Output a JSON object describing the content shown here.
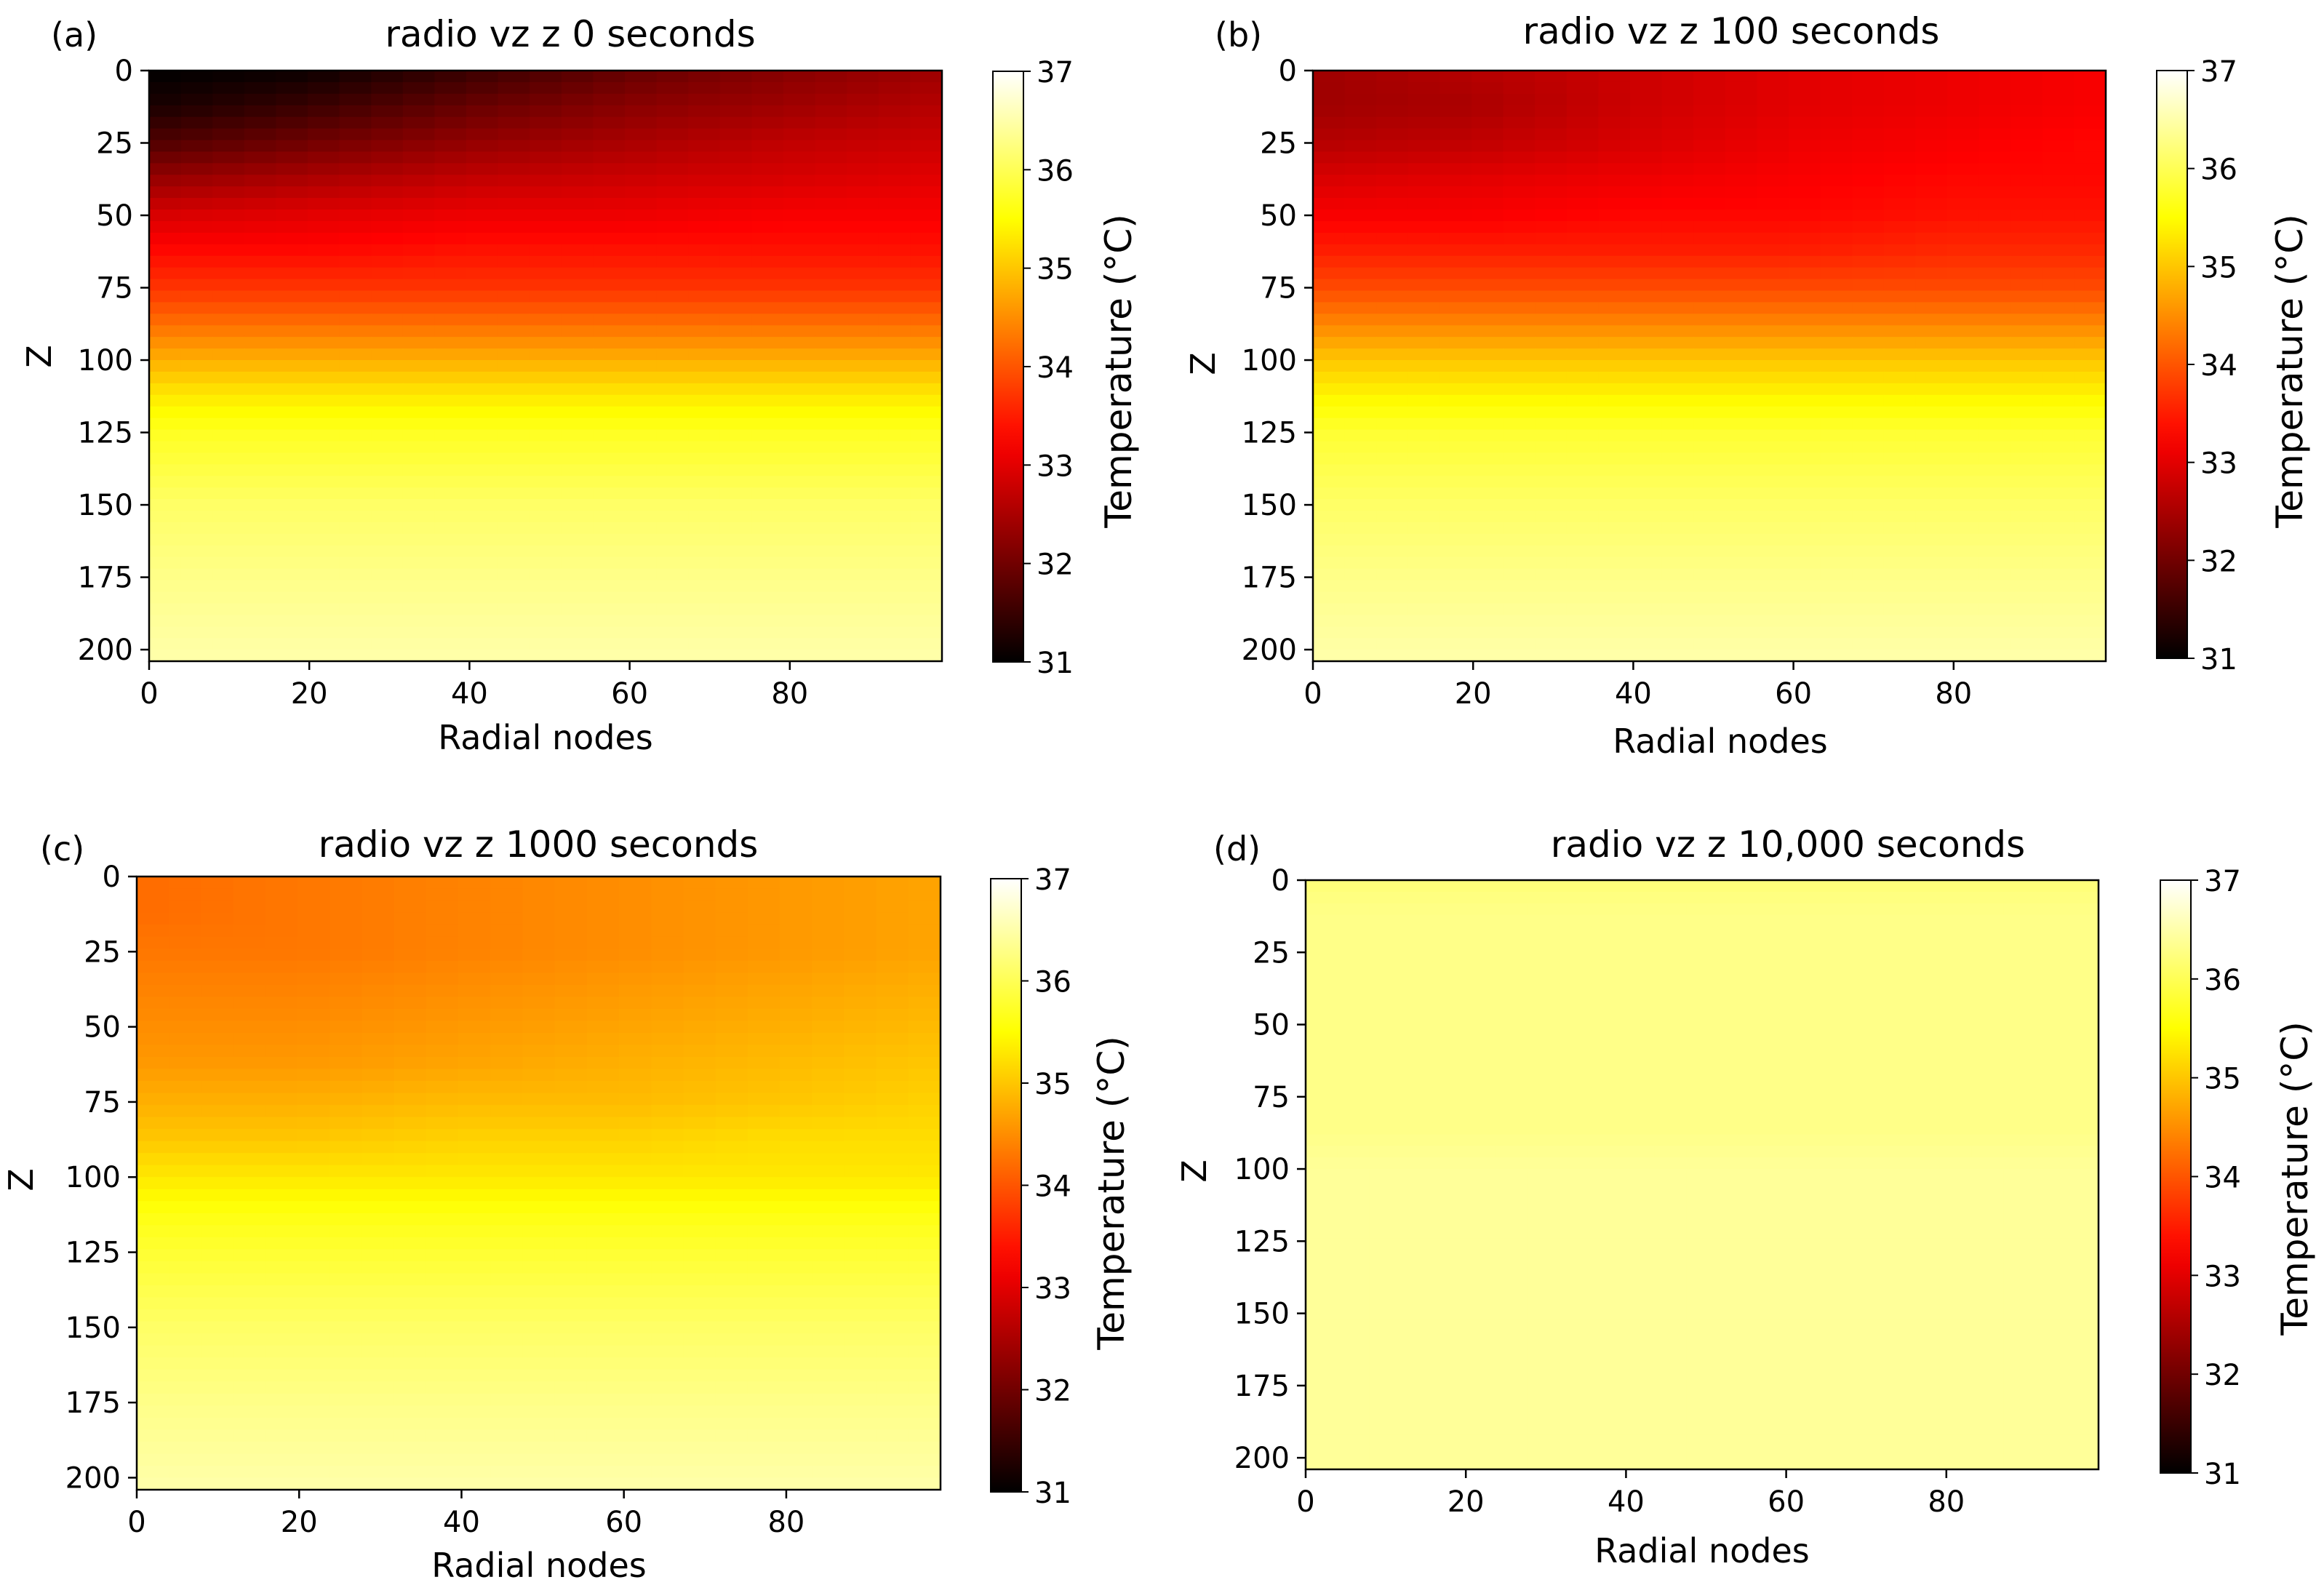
{
  "chart_data": [
    {
      "type": "heatmap",
      "panel_label": "(a)",
      "title": "radio vz z 0 seconds",
      "time_seconds": 0,
      "xlabel": "Radial nodes",
      "ylabel": "Z",
      "xticks": [
        0,
        20,
        40,
        60,
        80
      ],
      "yticks": [
        0,
        25,
        50,
        75,
        100,
        125,
        150,
        175,
        200
      ],
      "xlim": [
        0,
        99
      ],
      "ylim": [
        0,
        204
      ],
      "colorbar": {
        "label": "Temperature (°C)",
        "ticks": [
          31,
          32,
          33,
          34,
          35,
          36,
          37
        ],
        "range": [
          31,
          37
        ],
        "colormap": "hot"
      },
      "z_samples": [
        0,
        12,
        25,
        37,
        50,
        62,
        75,
        87,
        100,
        112,
        125,
        150,
        175,
        204
      ],
      "r_samples": [
        0,
        20,
        40,
        60,
        80,
        99
      ],
      "values": [
        [
          31.0,
          31.1,
          31.5,
          31.9,
          32.2,
          32.4
        ],
        [
          31.2,
          31.5,
          31.9,
          32.2,
          32.4,
          32.6
        ],
        [
          31.7,
          32.0,
          32.3,
          32.5,
          32.7,
          32.8
        ],
        [
          32.3,
          32.5,
          32.7,
          32.8,
          32.9,
          33.0
        ],
        [
          32.9,
          33.0,
          33.1,
          33.1,
          33.2,
          33.2
        ],
        [
          33.3,
          33.3,
          33.4,
          33.4,
          33.4,
          33.4
        ],
        [
          33.7,
          33.7,
          33.7,
          33.7,
          33.7,
          33.7
        ],
        [
          34.2,
          34.2,
          34.2,
          34.2,
          34.2,
          34.2
        ],
        [
          34.8,
          34.8,
          34.8,
          34.8,
          34.8,
          34.8
        ],
        [
          35.3,
          35.3,
          35.3,
          35.3,
          35.3,
          35.3
        ],
        [
          35.7,
          35.7,
          35.7,
          35.7,
          35.7,
          35.7
        ],
        [
          36.1,
          36.1,
          36.1,
          36.1,
          36.1,
          36.1
        ],
        [
          36.3,
          36.3,
          36.3,
          36.3,
          36.3,
          36.3
        ],
        [
          36.5,
          36.5,
          36.5,
          36.5,
          36.5,
          36.5
        ]
      ]
    },
    {
      "type": "heatmap",
      "panel_label": "(b)",
      "title": "radio vz z 100 seconds",
      "time_seconds": 100,
      "xlabel": "Radial nodes",
      "ylabel": "Z",
      "xticks": [
        0,
        20,
        40,
        60,
        80
      ],
      "yticks": [
        0,
        25,
        50,
        75,
        100,
        125,
        150,
        175,
        200
      ],
      "xlim": [
        0,
        99
      ],
      "ylim": [
        0,
        204
      ],
      "colorbar": {
        "label": "Temperature (°C)",
        "ticks": [
          31,
          32,
          33,
          34,
          35,
          36,
          37
        ],
        "range": [
          31,
          37
        ],
        "colormap": "hot"
      },
      "z_samples": [
        0,
        12,
        25,
        37,
        50,
        62,
        75,
        87,
        100,
        112,
        125,
        150,
        175,
        204
      ],
      "r_samples": [
        0,
        20,
        40,
        60,
        80,
        99
      ],
      "values": [
        [
          32.4,
          32.6,
          32.8,
          33.0,
          33.1,
          33.2
        ],
        [
          32.4,
          32.5,
          32.8,
          33.0,
          33.1,
          33.2
        ],
        [
          32.6,
          32.7,
          32.9,
          33.1,
          33.2,
          33.3
        ],
        [
          32.9,
          33.0,
          33.1,
          33.2,
          33.3,
          33.3
        ],
        [
          33.2,
          33.2,
          33.3,
          33.3,
          33.4,
          33.4
        ],
        [
          33.5,
          33.5,
          33.5,
          33.5,
          33.6,
          33.6
        ],
        [
          33.9,
          33.9,
          33.9,
          33.9,
          33.9,
          33.9
        ],
        [
          34.4,
          34.4,
          34.4,
          34.4,
          34.4,
          34.4
        ],
        [
          35.0,
          35.0,
          35.0,
          35.0,
          35.0,
          35.0
        ],
        [
          35.4,
          35.4,
          35.4,
          35.4,
          35.4,
          35.4
        ],
        [
          35.8,
          35.8,
          35.8,
          35.8,
          35.8,
          35.8
        ],
        [
          36.1,
          36.1,
          36.1,
          36.1,
          36.1,
          36.1
        ],
        [
          36.3,
          36.3,
          36.3,
          36.3,
          36.3,
          36.3
        ],
        [
          36.5,
          36.5,
          36.5,
          36.5,
          36.5,
          36.5
        ]
      ]
    },
    {
      "type": "heatmap",
      "panel_label": "(c)",
      "title": "radio vz z 1000 seconds",
      "time_seconds": 1000,
      "xlabel": "Radial nodes",
      "ylabel": "Z",
      "xticks": [
        0,
        20,
        40,
        60,
        80
      ],
      "yticks": [
        0,
        25,
        50,
        75,
        100,
        125,
        150,
        175,
        200
      ],
      "xlim": [
        0,
        99
      ],
      "ylim": [
        0,
        204
      ],
      "colorbar": {
        "label": "Temperature (°C)",
        "ticks": [
          31,
          32,
          33,
          34,
          35,
          36,
          37
        ],
        "range": [
          31,
          37
        ],
        "colormap": "hot"
      },
      "z_samples": [
        0,
        12,
        25,
        37,
        50,
        62,
        75,
        87,
        100,
        112,
        125,
        150,
        175,
        204
      ],
      "r_samples": [
        0,
        20,
        40,
        60,
        80,
        99
      ],
      "values": [
        [
          34.2,
          34.3,
          34.4,
          34.5,
          34.6,
          34.7
        ],
        [
          34.2,
          34.3,
          34.4,
          34.5,
          34.6,
          34.7
        ],
        [
          34.3,
          34.3,
          34.4,
          34.5,
          34.6,
          34.7
        ],
        [
          34.4,
          34.4,
          34.5,
          34.6,
          34.7,
          34.8
        ],
        [
          34.5,
          34.5,
          34.6,
          34.7,
          34.8,
          34.9
        ],
        [
          34.6,
          34.6,
          34.7,
          34.8,
          34.9,
          35.0
        ],
        [
          34.8,
          34.8,
          34.9,
          34.9,
          35.0,
          35.1
        ],
        [
          35.0,
          35.0,
          35.1,
          35.1,
          35.2,
          35.2
        ],
        [
          35.3,
          35.3,
          35.3,
          35.3,
          35.3,
          35.3
        ],
        [
          35.6,
          35.6,
          35.6,
          35.6,
          35.6,
          35.6
        ],
        [
          35.8,
          35.8,
          35.8,
          35.8,
          35.8,
          35.8
        ],
        [
          36.1,
          36.1,
          36.1,
          36.1,
          36.1,
          36.1
        ],
        [
          36.3,
          36.3,
          36.3,
          36.3,
          36.3,
          36.3
        ],
        [
          36.5,
          36.5,
          36.5,
          36.5,
          36.5,
          36.5
        ]
      ]
    },
    {
      "type": "heatmap",
      "panel_label": "(d)",
      "title": "radio vz z 10,000 seconds",
      "time_seconds": 10000,
      "xlabel": "Radial nodes",
      "ylabel": "Z",
      "xticks": [
        0,
        20,
        40,
        60,
        80
      ],
      "yticks": [
        0,
        25,
        50,
        75,
        100,
        125,
        150,
        175,
        200
      ],
      "xlim": [
        0,
        99
      ],
      "ylim": [
        0,
        204
      ],
      "colorbar": {
        "label": "Temperature (°C)",
        "ticks": [
          31,
          32,
          33,
          34,
          35,
          36,
          37
        ],
        "range": [
          31,
          37
        ],
        "colormap": "hot"
      },
      "z_samples": [
        0,
        12,
        25,
        37,
        50,
        62,
        75,
        87,
        100,
        112,
        125,
        150,
        175,
        204
      ],
      "r_samples": [
        0,
        20,
        40,
        60,
        80,
        99
      ],
      "values": [
        [
          36.2,
          36.2,
          36.2,
          36.2,
          36.2,
          36.2
        ],
        [
          36.3,
          36.3,
          36.3,
          36.3,
          36.3,
          36.3
        ],
        [
          36.3,
          36.3,
          36.3,
          36.3,
          36.3,
          36.3
        ],
        [
          36.3,
          36.3,
          36.3,
          36.3,
          36.3,
          36.3
        ],
        [
          36.3,
          36.3,
          36.3,
          36.3,
          36.3,
          36.3
        ],
        [
          36.3,
          36.3,
          36.3,
          36.3,
          36.3,
          36.3
        ],
        [
          36.3,
          36.3,
          36.3,
          36.3,
          36.3,
          36.3
        ],
        [
          36.3,
          36.3,
          36.3,
          36.3,
          36.3,
          36.3
        ],
        [
          36.4,
          36.4,
          36.4,
          36.4,
          36.4,
          36.4
        ],
        [
          36.4,
          36.4,
          36.4,
          36.4,
          36.4,
          36.4
        ],
        [
          36.4,
          36.4,
          36.4,
          36.4,
          36.4,
          36.4
        ],
        [
          36.4,
          36.4,
          36.4,
          36.4,
          36.4,
          36.4
        ],
        [
          36.4,
          36.4,
          36.4,
          36.4,
          36.4,
          36.4
        ],
        [
          36.4,
          36.4,
          36.4,
          36.4,
          36.4,
          36.4
        ]
      ]
    }
  ]
}
